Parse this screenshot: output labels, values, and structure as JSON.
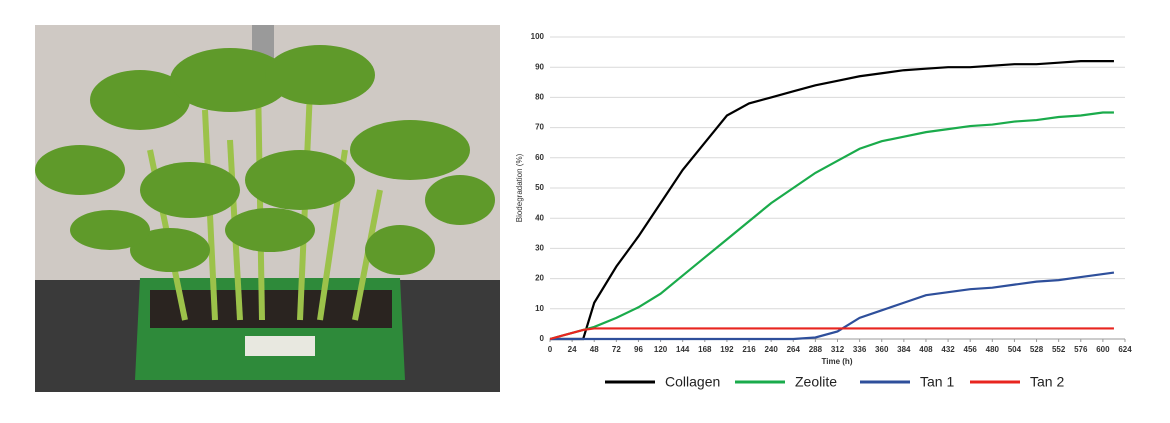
{
  "chart_data": {
    "type": "line",
    "x_label": "Time (h)",
    "y_label": "Biodegradation (%)",
    "x": [
      0,
      12,
      24,
      36,
      48,
      72,
      96,
      120,
      144,
      168,
      192,
      216,
      240,
      264,
      288,
      312,
      336,
      360,
      384,
      408,
      432,
      456,
      480,
      504,
      528,
      552,
      576,
      600,
      612
    ],
    "series": [
      {
        "name": "Collagen",
        "color": "#000000",
        "values": [
          0,
          0,
          0,
          0,
          12,
          24,
          34,
          45,
          56,
          65,
          74,
          78,
          80,
          82,
          84,
          85.5,
          87,
          88,
          89,
          89.5,
          90,
          90,
          90.5,
          91,
          91,
          91.5,
          92,
          92,
          92
        ]
      },
      {
        "name": "Zeolite",
        "color": "#1aab4b",
        "values": [
          0,
          1,
          2,
          3,
          4,
          7,
          10.5,
          15,
          21,
          27,
          33,
          39,
          45,
          50,
          55,
          59,
          63,
          65.5,
          67,
          68.5,
          69.5,
          70.5,
          71,
          72,
          72.5,
          73.5,
          74,
          75,
          75
        ]
      },
      {
        "name": "Tan 1",
        "color": "#2e4f9b",
        "values": [
          0,
          0,
          0,
          0,
          0,
          0,
          0,
          0,
          0,
          0,
          0,
          0,
          0,
          0,
          0.5,
          2.5,
          7,
          9.5,
          12,
          14.5,
          15.5,
          16.5,
          17,
          18,
          19,
          19.5,
          20.5,
          21.5,
          22
        ]
      },
      {
        "name": "Tan 2",
        "color": "#e8251f",
        "values": [
          0,
          1,
          2,
          3,
          3.5,
          3.5,
          3.5,
          3.5,
          3.5,
          3.5,
          3.5,
          3.5,
          3.5,
          3.5,
          3.5,
          3.5,
          3.5,
          3.5,
          3.5,
          3.5,
          3.5,
          3.5,
          3.5,
          3.5,
          3.5,
          3.5,
          3.5,
          3.5,
          3.5
        ]
      }
    ],
    "xlim": [
      0,
      624
    ],
    "xticks": [
      0,
      24,
      48,
      72,
      96,
      120,
      144,
      168,
      192,
      216,
      240,
      264,
      288,
      312,
      336,
      360,
      384,
      408,
      432,
      456,
      480,
      504,
      528,
      552,
      576,
      600,
      624
    ],
    "ylim": [
      0,
      100
    ],
    "yticks": [
      0,
      10,
      20,
      30,
      40,
      50,
      60,
      70,
      80,
      90,
      100
    ],
    "grid": true,
    "legend": "bottom"
  }
}
